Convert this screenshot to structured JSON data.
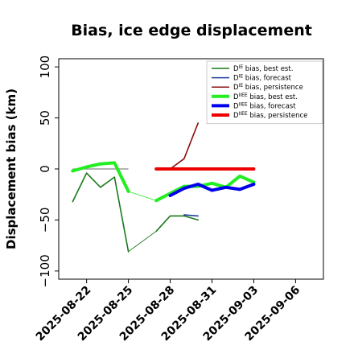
{
  "chart_data": {
    "type": "line",
    "title": "Bias, ice edge displacement",
    "xlabel": "",
    "ylabel": "Displacement bias (km)",
    "x_ticks": [
      "2025-08-22",
      "2025-08-25",
      "2025-08-28",
      "2025-08-31",
      "2025-09-03",
      "2025-09-06"
    ],
    "highlighted_tick": "2025-08-28",
    "highlight_color": "#228b22",
    "y_ticks": [
      100,
      50,
      0,
      -50,
      -100
    ],
    "xlim": [
      "2025-08-20",
      "2025-09-08"
    ],
    "ylim": [
      -108,
      108
    ],
    "legend_position": "upper right",
    "legend": [
      {
        "label": "D^IE bias, best est.",
        "sym": "IE",
        "rest": " bias, best est.",
        "color": "#1a7a1a",
        "width": "thin"
      },
      {
        "label": "D^IE bias, forecast",
        "sym": "IE",
        "rest": " bias, forecast",
        "color": "#1f3fa0",
        "width": "thin"
      },
      {
        "label": "D^IE bias, persistence",
        "sym": "IE",
        "rest": " bias, persistence",
        "color": "#8b1010",
        "width": "thin"
      },
      {
        "label": "D^IIEE bias, best est.",
        "sym": "IIEE",
        "rest": " bias, best est.",
        "color": "#22ee22",
        "width": "thick"
      },
      {
        "label": "D^IIEE bias, forecast",
        "sym": "IIEE",
        "rest": " bias, forecast",
        "color": "#0000ee",
        "width": "thick"
      },
      {
        "label": "D^IIEE bias, persistence",
        "sym": "IIEE",
        "rest": " bias, persistence",
        "color": "#ee0000",
        "width": "thick"
      }
    ],
    "series": [
      {
        "name": "D^IE bias, best est.",
        "color": "#1a7a1a",
        "width": "thin",
        "x": [
          "2025-08-21",
          "2025-08-22",
          "2025-08-23",
          "2025-08-24",
          "2025-08-25"
        ],
        "y": [
          -32,
          -4,
          -18,
          -8,
          -81
        ]
      },
      {
        "name": "D^IE bias, best est. (later)",
        "color": "#1a7a1a",
        "width": "thin",
        "x": [
          "2025-08-27",
          "2025-08-28",
          "2025-08-29",
          "2025-08-30"
        ],
        "y": [
          -61,
          -46,
          -46,
          -50
        ]
      },
      {
        "name": "D^IE bias, forecast",
        "color": "#1f3fa0",
        "width": "thin",
        "x": [
          "2025-08-29",
          "2025-08-30"
        ],
        "y": [
          -45,
          -46
        ]
      },
      {
        "name": "D^IE bias, persistence",
        "color": "#8b1010",
        "width": "thin",
        "x": [
          "2025-08-27",
          "2025-08-28",
          "2025-08-29",
          "2025-08-30"
        ],
        "y": [
          0,
          0,
          10,
          45
        ]
      },
      {
        "name": "D^IIEE bias, best est.",
        "color": "#22ee22",
        "width": "thick",
        "x": [
          "2025-08-21",
          "2025-08-22",
          "2025-08-23",
          "2025-08-24",
          "2025-08-25"
        ],
        "y": [
          -2,
          2,
          5,
          6,
          -22
        ]
      },
      {
        "name": "D^IIEE bias, best est. (later)",
        "color": "#22ee22",
        "width": "thick",
        "x": [
          "2025-08-27",
          "2025-08-28",
          "2025-08-29",
          "2025-08-30",
          "2025-08-31",
          "2025-09-01",
          "2025-09-02",
          "2025-09-03"
        ],
        "y": [
          -31,
          -24,
          -17,
          -17,
          -14,
          -18,
          -7,
          -13
        ]
      },
      {
        "name": "D^IIEE bias, forecast",
        "color": "#0000ee",
        "width": "thick",
        "x": [
          "2025-08-28",
          "2025-08-29",
          "2025-08-30",
          "2025-08-31",
          "2025-09-01",
          "2025-09-02",
          "2025-09-03"
        ],
        "y": [
          -26,
          -19,
          -15,
          -21,
          -18,
          -20,
          -15
        ]
      },
      {
        "name": "D^IIEE bias, persistence",
        "color": "#ee0000",
        "width": "thick",
        "x": [
          "2025-08-27",
          "2025-08-28",
          "2025-08-29",
          "2025-08-30",
          "2025-08-31",
          "2025-09-01",
          "2025-09-02",
          "2025-09-03"
        ],
        "y": [
          0,
          0,
          0,
          0,
          0,
          0,
          0,
          0
        ]
      }
    ],
    "connectors": [
      {
        "color": "#1a7a1a",
        "from": [
          "2025-08-25",
          -81
        ],
        "to": [
          "2025-08-27",
          -61
        ]
      },
      {
        "color": "#22ee22",
        "from": [
          "2025-08-25",
          -22
        ],
        "to": [
          "2025-08-27",
          -31
        ]
      }
    ],
    "reference_line": {
      "color": "#888888",
      "x": [
        "2025-08-21",
        "2025-08-25"
      ],
      "y": 0
    }
  }
}
